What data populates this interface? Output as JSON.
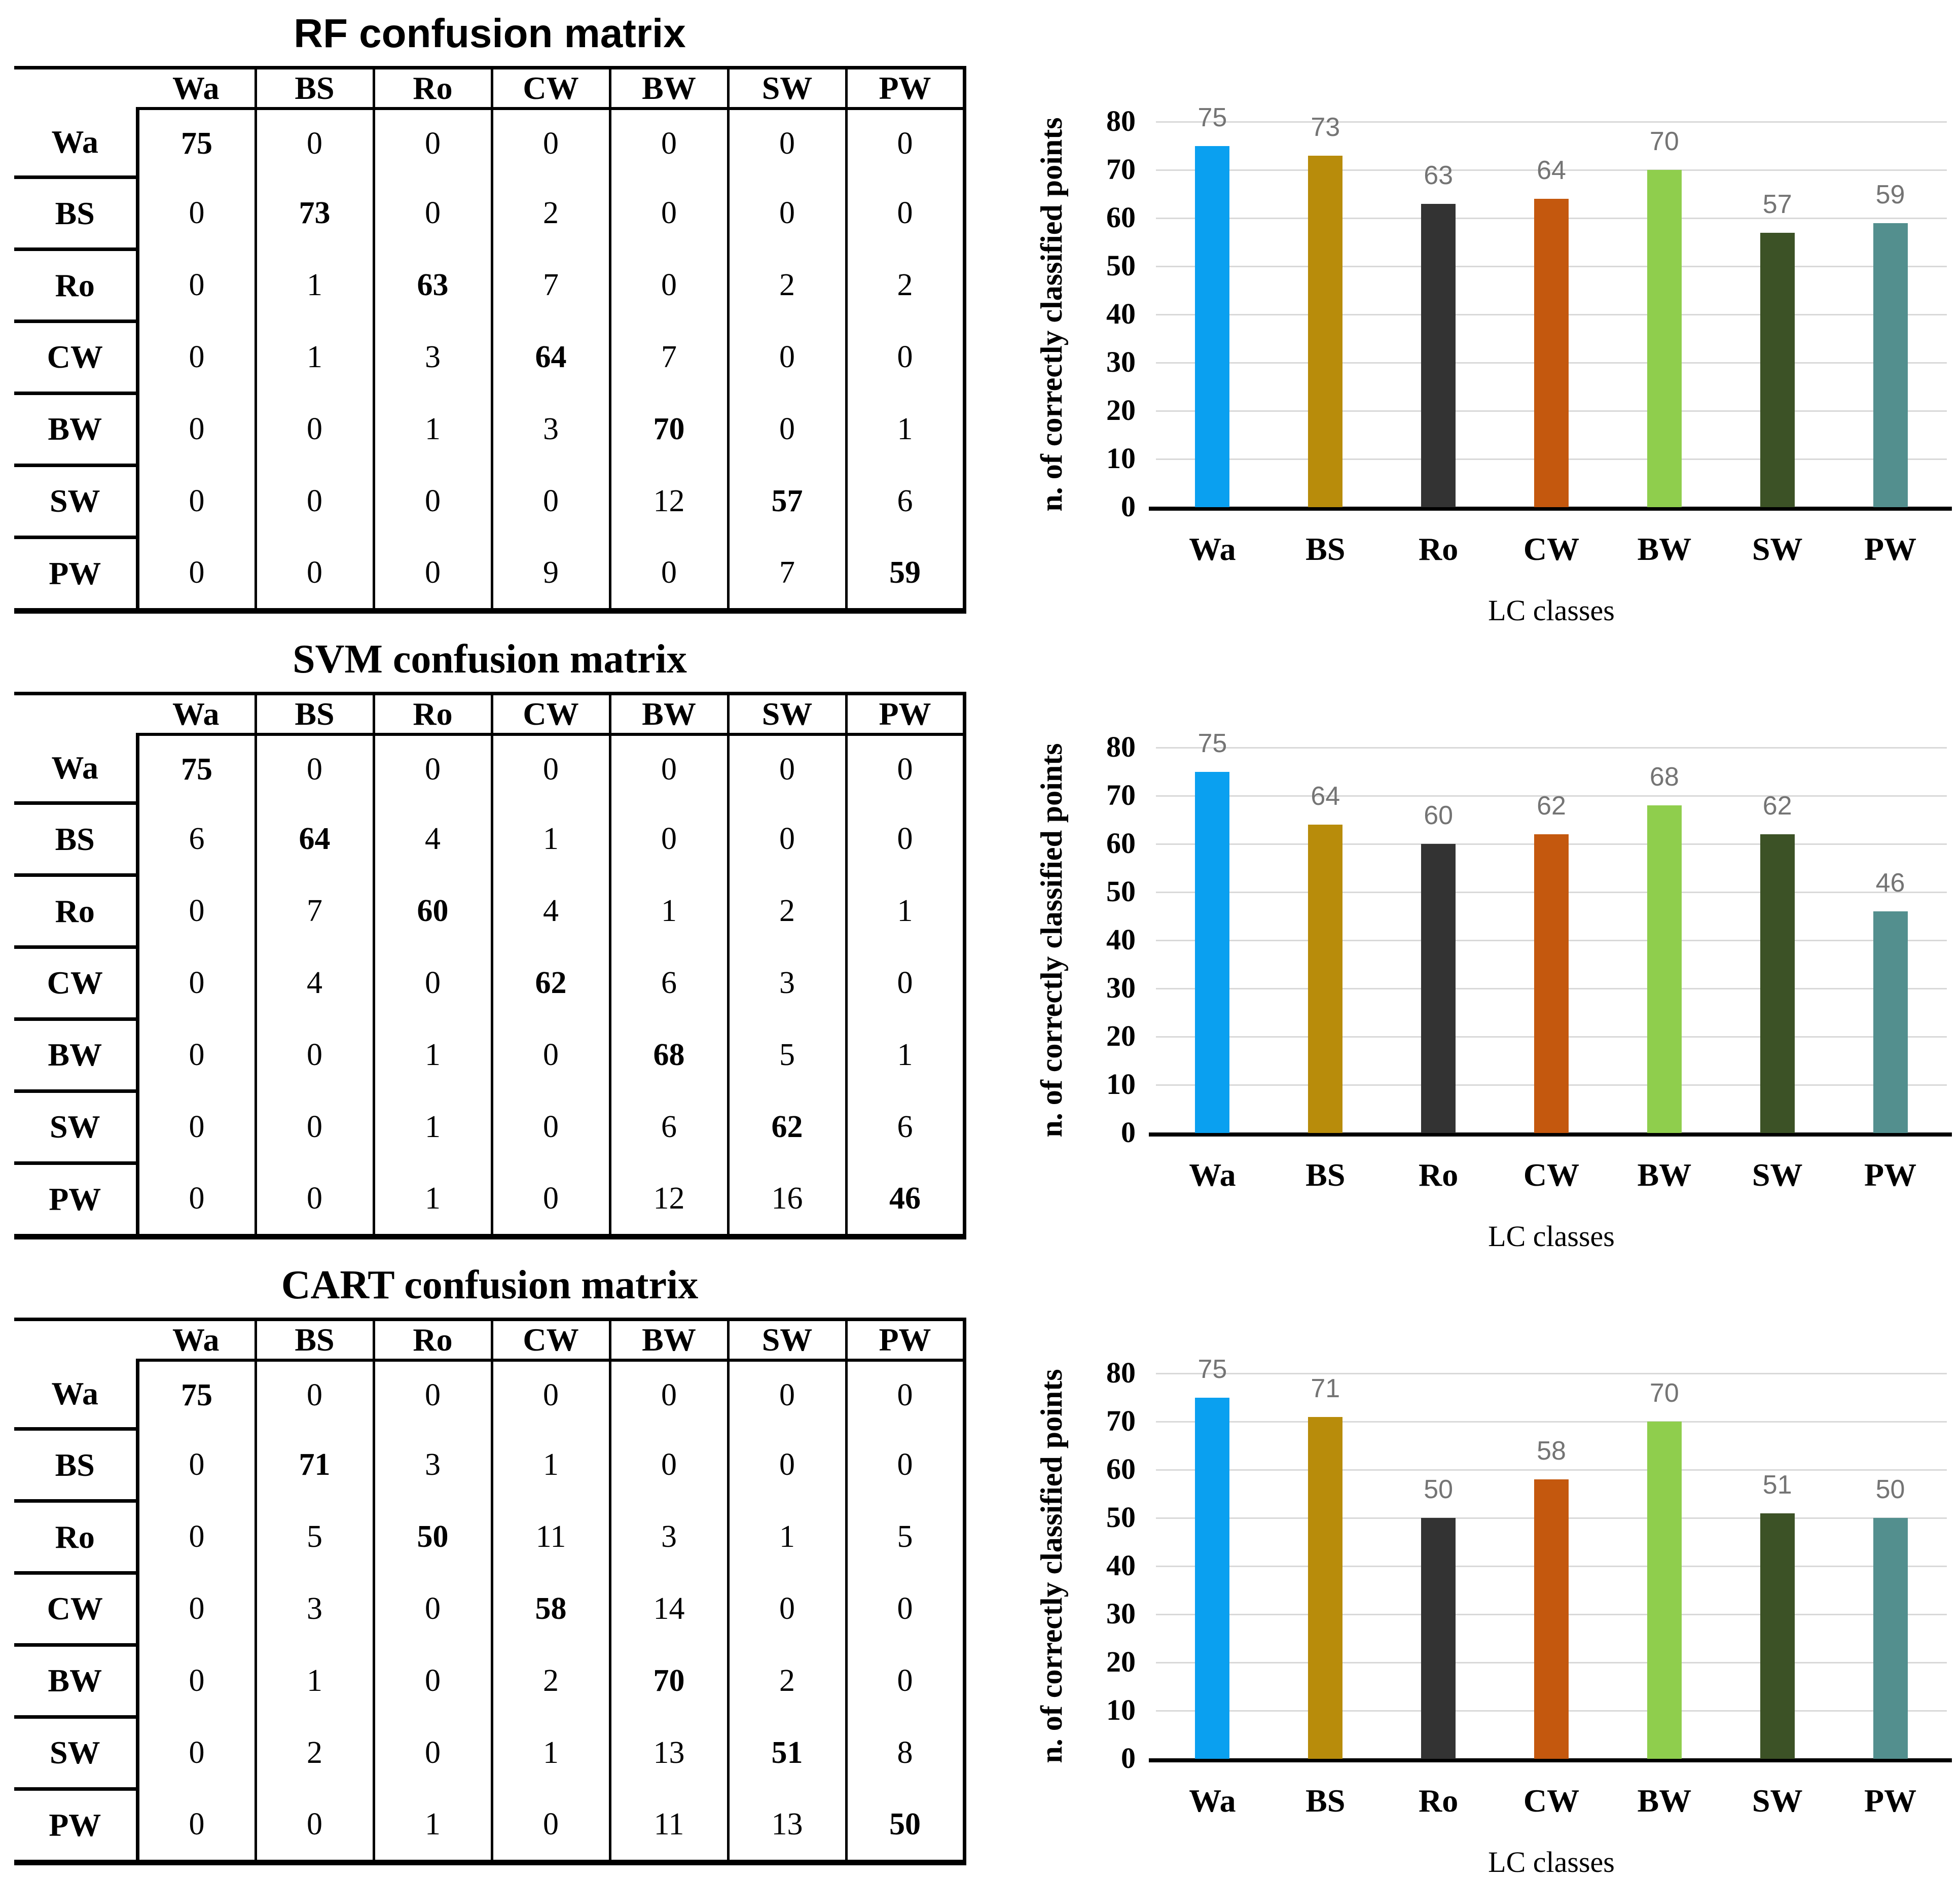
{
  "figure": {
    "categories": [
      "Wa",
      "BS",
      "Ro",
      "CW",
      "BW",
      "SW",
      "PW"
    ],
    "colors": {
      "gridline": "#D9D9D9",
      "axis_line": "#000000",
      "value_label": "#747474",
      "bar_colors": [
        "#0AA0F0",
        "#B88C0B",
        "#333333",
        "#C4580E",
        "#8FCE4D",
        "#3C5226",
        "#538F8E"
      ]
    }
  },
  "chart_data": [
    {
      "type": "table",
      "title": "RF confusion matrix",
      "col_labels": [
        "Wa",
        "BS",
        "Ro",
        "CW",
        "BW",
        "SW",
        "PW"
      ],
      "row_labels": [
        "Wa",
        "BS",
        "Ro",
        "CW",
        "BW",
        "SW",
        "PW"
      ],
      "values": [
        [
          75,
          0,
          0,
          0,
          0,
          0,
          0
        ],
        [
          0,
          73,
          0,
          2,
          0,
          0,
          0
        ],
        [
          0,
          1,
          63,
          7,
          0,
          2,
          2
        ],
        [
          0,
          1,
          3,
          64,
          7,
          0,
          0
        ],
        [
          0,
          0,
          1,
          3,
          70,
          0,
          1
        ],
        [
          0,
          0,
          0,
          0,
          12,
          57,
          6
        ],
        [
          0,
          0,
          0,
          9,
          0,
          7,
          59
        ]
      ]
    },
    {
      "type": "bar",
      "title": "",
      "categories": [
        "Wa",
        "BS",
        "Ro",
        "CW",
        "BW",
        "SW",
        "PW"
      ],
      "values": [
        75,
        73,
        63,
        64,
        70,
        57,
        59
      ],
      "value_labels": [
        "75",
        "73",
        "63",
        "64",
        "70",
        "57",
        "59"
      ],
      "ylabel": "n. of correctly classified points",
      "xlabel": "LC classes",
      "ylim": [
        0,
        80
      ],
      "yticks": [
        0,
        10,
        20,
        30,
        40,
        50,
        60,
        70,
        80
      ],
      "grid": true,
      "legend": false,
      "bar_colors": [
        "#0AA0F0",
        "#B88C0B",
        "#333333",
        "#C4580E",
        "#8FCE4D",
        "#3C5226",
        "#538F8E"
      ]
    },
    {
      "type": "table",
      "title": "SVM confusion matrix",
      "col_labels": [
        "Wa",
        "BS",
        "Ro",
        "CW",
        "BW",
        "SW",
        "PW"
      ],
      "row_labels": [
        "Wa",
        "BS",
        "Ro",
        "CW",
        "BW",
        "SW",
        "PW"
      ],
      "values": [
        [
          75,
          0,
          0,
          0,
          0,
          0,
          0
        ],
        [
          6,
          64,
          4,
          1,
          0,
          0,
          0
        ],
        [
          0,
          7,
          60,
          4,
          1,
          2,
          1
        ],
        [
          0,
          4,
          0,
          62,
          6,
          3,
          0
        ],
        [
          0,
          0,
          1,
          0,
          68,
          5,
          1
        ],
        [
          0,
          0,
          1,
          0,
          6,
          62,
          6
        ],
        [
          0,
          0,
          1,
          0,
          12,
          16,
          46
        ]
      ]
    },
    {
      "type": "bar",
      "title": "",
      "categories": [
        "Wa",
        "BS",
        "Ro",
        "CW",
        "BW",
        "SW",
        "PW"
      ],
      "values": [
        75,
        64,
        60,
        62,
        68,
        62,
        46
      ],
      "value_labels": [
        "75",
        "64",
        "60",
        "62",
        "68",
        "62",
        "46"
      ],
      "ylabel": "n. of correctly classified points",
      "xlabel": "LC classes",
      "ylim": [
        0,
        80
      ],
      "yticks": [
        0,
        10,
        20,
        30,
        40,
        50,
        60,
        70,
        80
      ],
      "grid": true,
      "legend": false,
      "bar_colors": [
        "#0AA0F0",
        "#B88C0B",
        "#333333",
        "#C4580E",
        "#8FCE4D",
        "#3C5226",
        "#538F8E"
      ]
    },
    {
      "type": "table",
      "title": "CART confusion matrix",
      "col_labels": [
        "Wa",
        "BS",
        "Ro",
        "CW",
        "BW",
        "SW",
        "PW"
      ],
      "row_labels": [
        "Wa",
        "BS",
        "Ro",
        "CW",
        "BW",
        "SW",
        "PW"
      ],
      "values": [
        [
          75,
          0,
          0,
          0,
          0,
          0,
          0
        ],
        [
          0,
          71,
          3,
          1,
          0,
          0,
          0
        ],
        [
          0,
          5,
          50,
          11,
          3,
          1,
          5
        ],
        [
          0,
          3,
          0,
          58,
          14,
          0,
          0
        ],
        [
          0,
          1,
          0,
          2,
          70,
          2,
          0
        ],
        [
          0,
          2,
          0,
          1,
          13,
          51,
          8
        ],
        [
          0,
          0,
          1,
          0,
          11,
          13,
          50
        ]
      ]
    },
    {
      "type": "bar",
      "title": "",
      "categories": [
        "Wa",
        "BS",
        "Ro",
        "CW",
        "BW",
        "SW",
        "PW"
      ],
      "values": [
        75,
        71,
        50,
        58,
        70,
        51,
        50
      ],
      "value_labels": [
        "75",
        "71",
        "50",
        "58",
        "70",
        "51",
        "50"
      ],
      "ylabel": "n. of correctly classified points",
      "xlabel": "LC classes",
      "ylim": [
        0,
        80
      ],
      "yticks": [
        0,
        10,
        20,
        30,
        40,
        50,
        60,
        70,
        80
      ],
      "grid": true,
      "legend": false,
      "bar_colors": [
        "#0AA0F0",
        "#B88C0B",
        "#333333",
        "#C4580E",
        "#8FCE4D",
        "#3C5226",
        "#538F8E"
      ]
    }
  ]
}
